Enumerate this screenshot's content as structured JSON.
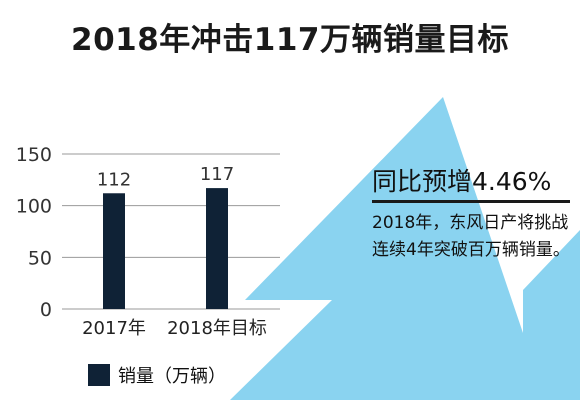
{
  "title": "2018年冲击117万辆销量目标",
  "colors": {
    "bar": "#0f2236",
    "arrow": "#8ad3f0",
    "grid": "#9a9a9a",
    "text": "#1a1a1a"
  },
  "callout": {
    "headline": "同比预增4.46%",
    "body": "2018年，东风日产将挑战连续4年突破百万辆销量。"
  },
  "chart_data": {
    "type": "bar",
    "categories": [
      "2017年",
      "2018年目标"
    ],
    "series": [
      {
        "name": "销量（万辆）",
        "values": [
          112,
          117
        ]
      }
    ],
    "data_labels": [
      "112",
      "117"
    ],
    "ylim": [
      0,
      150
    ],
    "yticks": [
      0,
      50,
      100,
      150
    ],
    "grid": true,
    "legend": "bottom-left",
    "xlabel": "",
    "ylabel": ""
  }
}
